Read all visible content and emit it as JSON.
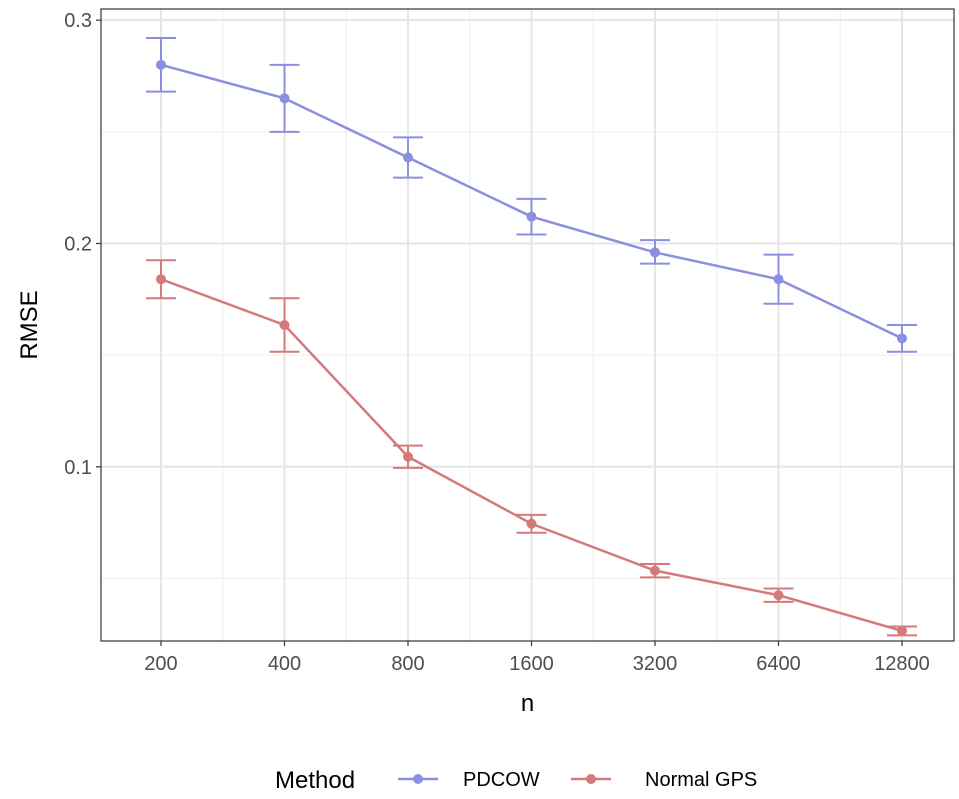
{
  "chart_data": {
    "type": "line",
    "xlabel": "n",
    "ylabel": "RMSE",
    "x_scale": "log2",
    "categories": [
      "200",
      "400",
      "800",
      "1600",
      "3200",
      "6400",
      "12800"
    ],
    "ylim": [
      0.022,
      0.305
    ],
    "yticks": [
      0.1,
      0.2,
      0.3
    ],
    "ytick_labels": [
      "0.1",
      "0.2",
      "0.3"
    ],
    "grid": true,
    "legend": {
      "title": "Method",
      "position": "bottom"
    },
    "series": [
      {
        "name": "PDCOW",
        "color": "#8b8fdf",
        "values": [
          0.28,
          0.265,
          0.2385,
          0.212,
          0.196,
          0.184,
          0.1575
        ],
        "lower": [
          0.268,
          0.25,
          0.2295,
          0.204,
          0.191,
          0.173,
          0.1515
        ],
        "upper": [
          0.292,
          0.28,
          0.2475,
          0.22,
          0.2015,
          0.195,
          0.1635
        ]
      },
      {
        "name": "Normal GPS",
        "color": "#d47a7a",
        "values": [
          0.184,
          0.1635,
          0.1045,
          0.0745,
          0.0535,
          0.0425,
          0.0265
        ],
        "lower": [
          0.1755,
          0.1515,
          0.0995,
          0.0705,
          0.0505,
          0.0395,
          0.0245
        ],
        "upper": [
          0.1925,
          0.1755,
          0.1095,
          0.0785,
          0.0565,
          0.0455,
          0.0285
        ]
      }
    ]
  }
}
